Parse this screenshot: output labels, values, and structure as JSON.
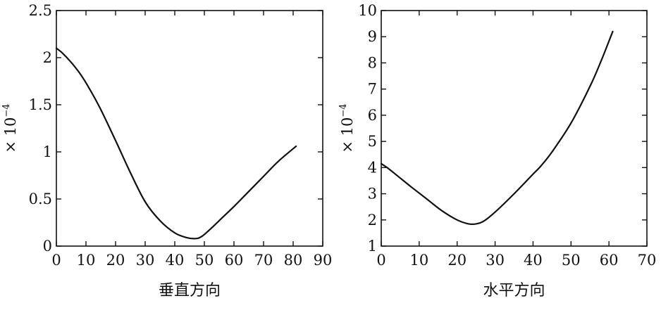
{
  "chart_data": [
    {
      "type": "line",
      "xlabel": "垂直方向",
      "ylabel": "× 10⁻⁴",
      "ylabel_base": "× 10",
      "ylabel_exp": "−4",
      "xlim": [
        0,
        90
      ],
      "ylim": [
        0,
        2.5
      ],
      "xticks": [
        0,
        10,
        20,
        30,
        40,
        50,
        60,
        70,
        80,
        90
      ],
      "yticks": [
        0,
        0.5,
        1,
        1.5,
        2,
        2.5
      ],
      "ytick_labels": [
        "0",
        "0.5",
        "1",
        "1.5",
        "2",
        "2.5"
      ],
      "grid": false,
      "series": [
        {
          "x": [
            0,
            2,
            5,
            8,
            11,
            15,
            20,
            25,
            30,
            35,
            40,
            44,
            47,
            49,
            52,
            56,
            60,
            65,
            70,
            75,
            81
          ],
          "y": [
            2.1,
            2.05,
            1.95,
            1.83,
            1.68,
            1.45,
            1.12,
            0.78,
            0.47,
            0.27,
            0.14,
            0.09,
            0.08,
            0.1,
            0.18,
            0.3,
            0.42,
            0.58,
            0.74,
            0.9,
            1.06
          ]
        }
      ]
    },
    {
      "type": "line",
      "xlabel": "水平方向",
      "ylabel": "× 10⁻⁴",
      "ylabel_base": "× 10",
      "ylabel_exp": "−4",
      "xlim": [
        0,
        70
      ],
      "ylim": [
        1,
        10
      ],
      "xticks": [
        0,
        10,
        20,
        30,
        40,
        50,
        60,
        70
      ],
      "yticks": [
        1,
        2,
        3,
        4,
        5,
        6,
        7,
        8,
        9,
        10
      ],
      "ytick_labels": [
        "1",
        "2",
        "3",
        "4",
        "5",
        "6",
        "7",
        "8",
        "9",
        "10"
      ],
      "grid": false,
      "series": [
        {
          "x": [
            0,
            2,
            5,
            8,
            12,
            16,
            20,
            23,
            25,
            27,
            30,
            35,
            40,
            42,
            45,
            50,
            55,
            58,
            61
          ],
          "y": [
            4.15,
            3.95,
            3.6,
            3.25,
            2.8,
            2.35,
            2.0,
            1.85,
            1.85,
            1.95,
            2.3,
            3.0,
            3.75,
            4.05,
            4.6,
            5.7,
            7.1,
            8.1,
            9.2
          ]
        }
      ]
    }
  ]
}
